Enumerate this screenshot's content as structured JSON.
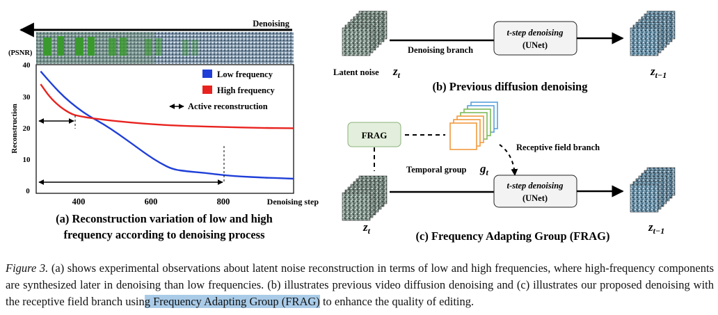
{
  "panel_a": {
    "denoising_label": "Denoising",
    "y_unit": "(PSNR)",
    "y_axis_title": "Reconstruction",
    "x_axis_title": "Denoising step",
    "legend": {
      "low": "Low frequency",
      "high": "High frequency",
      "active": "Active reconstruction"
    },
    "title_line1": "(a) Reconstruction variation of low and high",
    "title_line2": "frequency according to denoising process"
  },
  "chart_data": {
    "type": "line",
    "xlabel": "Denoising step",
    "ylabel": "Reconstruction",
    "ylim": [
      0,
      40
    ],
    "xlim": [
      295,
      1000
    ],
    "x_ticks": [
      400,
      600,
      800
    ],
    "y_ticks": [
      0,
      10,
      20,
      30,
      40
    ],
    "grid": false,
    "legend_position": "top-right",
    "series": [
      {
        "name": "Low frequency",
        "color": "#1f3fd8",
        "x": [
          295,
          330,
          360,
          395,
          430,
          470,
          510,
          550,
          590,
          625,
          660,
          700,
          750,
          800,
          850,
          900,
          950,
          1000
        ],
        "y": [
          37.5,
          33.0,
          29.5,
          26.2,
          23.5,
          21.0,
          18.0,
          14.8,
          11.5,
          9.0,
          7.0,
          6.4,
          5.9,
          5.2,
          4.8,
          4.5,
          4.3,
          4.1
        ]
      },
      {
        "name": "High frequency",
        "color": "#e8231f",
        "x": [
          295,
          320,
          350,
          380,
          400,
          430,
          480,
          550,
          620,
          700,
          800,
          900,
          1000
        ],
        "y": [
          33.5,
          29.5,
          26.3,
          24.2,
          23.6,
          23.0,
          22.3,
          21.5,
          20.9,
          20.5,
          20.2,
          19.9,
          19.8
        ]
      }
    ],
    "annotations": [
      {
        "type": "double-arrow",
        "from_x": 295,
        "to_x": 395,
        "y": 22
      },
      {
        "type": "double-arrow",
        "from_x": 295,
        "to_x": 800,
        "y": 3
      },
      {
        "type": "dashed-vline",
        "x": 395,
        "y_from": 21,
        "y_to": 23.5
      },
      {
        "type": "dashed-vline",
        "x": 800,
        "y_from": 2,
        "y_to": 14
      }
    ]
  },
  "panel_b": {
    "latent_noise_label": "Latent noise",
    "z_t": "z",
    "z_t_sub": "t",
    "branch_label": "Denoising branch",
    "box_line1": "t-step denoising",
    "box_line2": "(UNet)",
    "z_prev": "z",
    "z_prev_sub": "t−1",
    "title": "(b) Previous diffusion denoising"
  },
  "panel_c": {
    "frag_box": "FRAG",
    "temporal_group_label": "Temporal group",
    "g_t": "g",
    "g_t_sub": "t",
    "receptive_label": "Receptive field branch",
    "box_line1": "t-step denoising",
    "box_line2": "(UNet)",
    "z_t": "z",
    "z_t_sub": "t",
    "z_prev": "z",
    "z_prev_sub": "t−1",
    "title": "(c) Frequency Adapting Group (FRAG)"
  },
  "caption": {
    "label": "Figure 3.",
    "text_before": " (a) shows experimental observations about latent noise reconstruction in terms of low and high frequencies, where high-frequency components are synthesized later in denoising than low frequencies. (b) illustrates previous video diffusion denoising and (c) illustrates our proposed denoising with the receptive field branch usin",
    "highlight": "g Frequency Adapting Group (FRAG)",
    "text_after": " to enhance the quality of editing."
  },
  "colors": {
    "low_frequency": "#1f3fd8",
    "high_frequency": "#e8231f",
    "frag_box_fill": "#e3efdc",
    "frag_box_stroke": "#8ab07a",
    "unet_box_fill": "#f3f3f3",
    "caption_highlight": "#a9cbe8"
  }
}
